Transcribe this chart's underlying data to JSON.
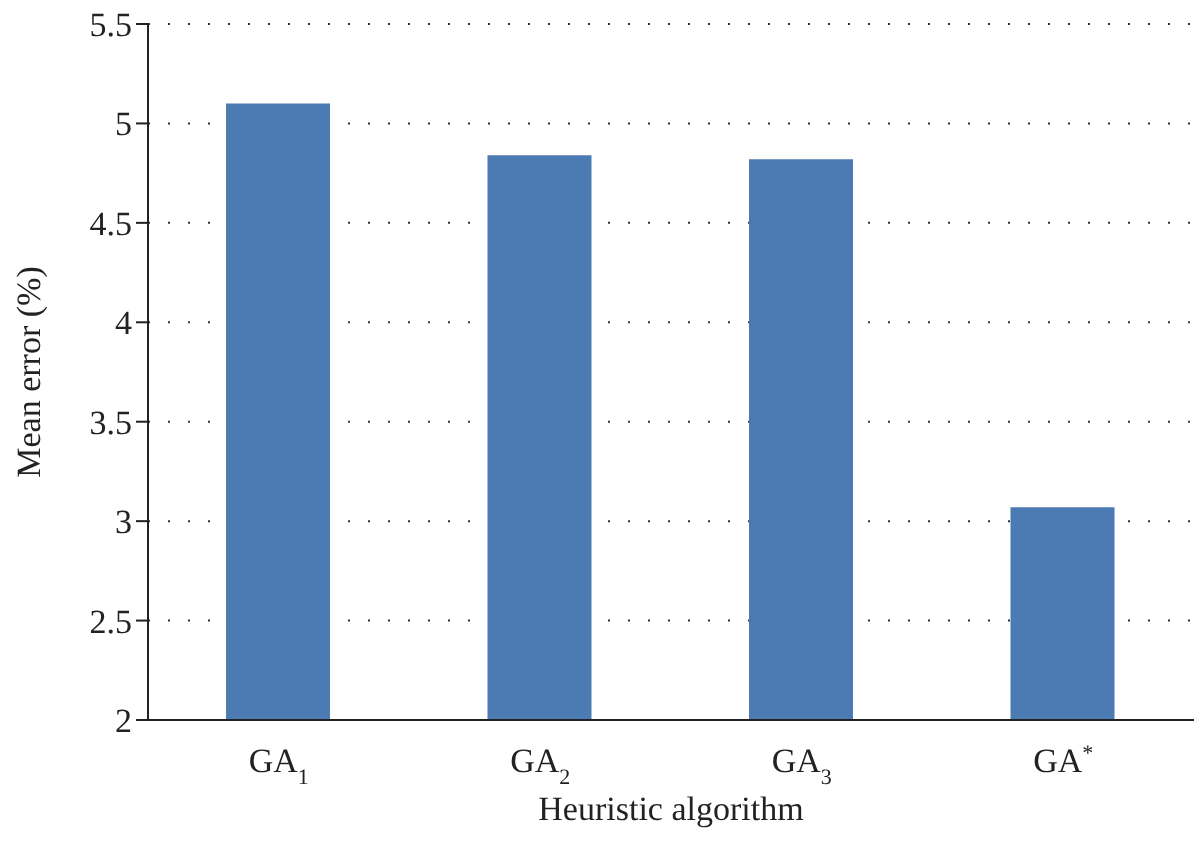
{
  "chart_data": {
    "type": "bar",
    "xlabel": "Heuristic algorithm",
    "ylabel": "Mean error (%)",
    "categories": [
      "GA$_{1}$",
      "GA$_{2}$",
      "GA$_{3}$",
      "GA$^{*}$"
    ],
    "values": [
      5.1,
      4.84,
      4.82,
      3.07
    ],
    "color": "#4c7ab3",
    "ylim": [
      2,
      5.5
    ],
    "yticks": [
      2,
      2.5,
      3,
      3.5,
      4,
      4.5,
      5,
      5.5
    ],
    "grid": "y"
  }
}
